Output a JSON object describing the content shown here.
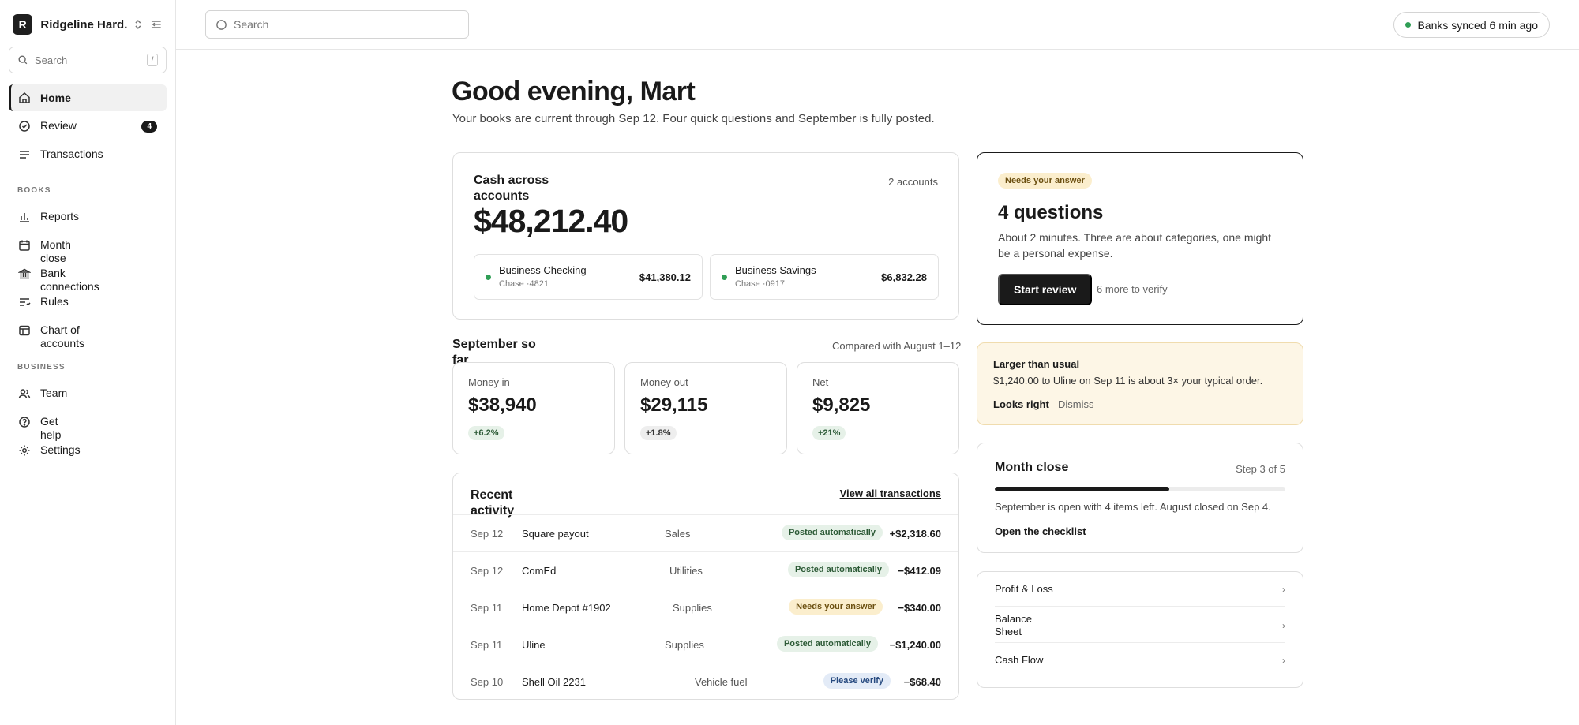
{
  "workspace": {
    "initial": "R",
    "name": "Ridgeline Hard..."
  },
  "sidebar": {
    "search_placeholder": "Search",
    "search_shortcut": "/",
    "primary": [
      {
        "label": "Home",
        "icon": "home-icon",
        "active": true
      },
      {
        "label": "Review",
        "icon": "check-circle-icon",
        "badge": "4"
      },
      {
        "label": "Transactions",
        "icon": "list-icon"
      }
    ],
    "books_heading": "BOOKS",
    "books": [
      {
        "label": "Reports",
        "icon": "bar-chart-icon"
      },
      {
        "label": "Month close",
        "icon": "calendar-icon"
      },
      {
        "label": "Bank connections",
        "icon": "bank-icon"
      },
      {
        "label": "Rules",
        "icon": "rules-icon"
      },
      {
        "label": "Chart of accounts",
        "icon": "table-icon"
      }
    ],
    "business_heading": "BUSINESS",
    "business": [
      {
        "label": "Team",
        "icon": "users-icon"
      },
      {
        "label": "Get help",
        "icon": "help-icon"
      },
      {
        "label": "Settings",
        "icon": "gear-icon"
      }
    ]
  },
  "topbar": {
    "search_placeholder": "Search",
    "sync_status": "Banks synced 6 min ago",
    "sync_color": "#2f9e55"
  },
  "greeting": {
    "title": "Good evening, Mart",
    "subtitle": "Your books are current through Sep 12. Four quick questions and September is fully posted."
  },
  "cash": {
    "title": "Cash across accounts",
    "account_count": "2 accounts",
    "total": "$48,212.40",
    "accounts": [
      {
        "name": "Business Checking",
        "sub": "Chase ·4821",
        "balance": "$41,380.12"
      },
      {
        "name": "Business Savings",
        "sub": "Chase ·0917",
        "balance": "$6,832.28"
      }
    ]
  },
  "september": {
    "title": "September so far",
    "compare": "Compared with August 1–12",
    "stats": [
      {
        "label": "Money in",
        "value": "$38,940",
        "change": "+6.2%"
      },
      {
        "label": "Money out",
        "value": "$29,115",
        "change": "+1.8%"
      },
      {
        "label": "Net",
        "value": "$9,825",
        "change": "+21%"
      }
    ]
  },
  "recent": {
    "title": "Recent activity",
    "view_all": "View all transactions",
    "rows": [
      {
        "date": "Sep 12",
        "merchant": "Square payout",
        "category": "Sales",
        "status": "Posted automatically",
        "status_type": "auto",
        "amount": "+$2,318.60"
      },
      {
        "date": "Sep 12",
        "merchant": "ComEd",
        "category": "Utilities",
        "status": "Posted automatically",
        "status_type": "auto",
        "amount": "−$412.09"
      },
      {
        "date": "Sep 11",
        "merchant": "Home Depot #1902",
        "category": "Supplies",
        "status": "Needs your answer",
        "status_type": "ans",
        "amount": "−$340.00"
      },
      {
        "date": "Sep 11",
        "merchant": "Uline",
        "category": "Supplies",
        "status": "Posted automatically",
        "status_type": "auto",
        "amount": "−$1,240.00"
      },
      {
        "date": "Sep 10",
        "merchant": "Shell Oil 2231",
        "category": "Vehicle fuel",
        "status": "Please verify",
        "status_type": "ver",
        "amount": "−$68.40"
      }
    ]
  },
  "questions": {
    "tag": "Needs your answer",
    "title": "4 questions",
    "desc": "About 2 minutes. Three are about categories, one might be a personal expense.",
    "button": "Start review",
    "more": "6 more to verify"
  },
  "alert": {
    "title": "Larger than usual",
    "text": "$1,240.00 to Uline on Sep 11 is about 3× your typical order.",
    "confirm": "Looks right",
    "dismiss": "Dismiss"
  },
  "month_close": {
    "title": "Month close",
    "step": "Step 3 of 5",
    "progress": 0.6,
    "text": "September is open with 4 items left. August closed on Sep 4.",
    "link": "Open the checklist"
  },
  "reports": [
    {
      "label": "Profit & Loss"
    },
    {
      "label": "Balance Sheet"
    },
    {
      "label": "Cash Flow"
    }
  ]
}
